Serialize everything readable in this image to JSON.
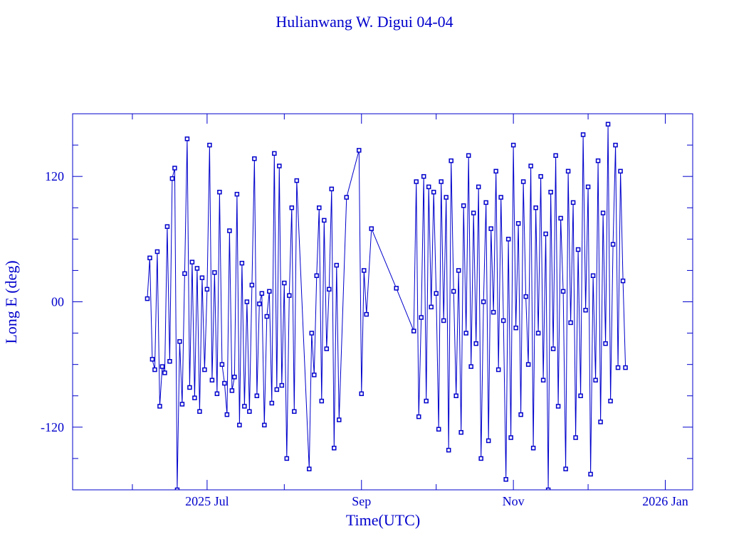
{
  "chart_data": {
    "type": "line",
    "title": "Hulianwang W. Digui 04-04",
    "xlabel": "Time(UTC)",
    "ylabel": "Long E (deg)",
    "xlim": [
      "2025-05-08",
      "2026-01-12"
    ],
    "ylim": [
      -180,
      180
    ],
    "x_ticks": [
      {
        "date": "2025-07-01",
        "label": "2025 Jul"
      },
      {
        "date": "2025-09-01",
        "label": "Sep"
      },
      {
        "date": "2025-11-01",
        "label": "Nov"
      },
      {
        "date": "2026-01-01",
        "label": "2026 Jan"
      }
    ],
    "y_ticks": [
      {
        "value": 120,
        "label": "120"
      },
      {
        "value": 0,
        "label": "00"
      },
      {
        "value": -120,
        "label": "-120"
      }
    ],
    "grid": false,
    "color": "#0000cc",
    "marker": "square",
    "points": [
      [
        "2025-06-07",
        3
      ],
      [
        "2025-06-08",
        42
      ],
      [
        "2025-06-09",
        -55
      ],
      [
        "2025-06-10",
        -65
      ],
      [
        "2025-06-11",
        48
      ],
      [
        "2025-06-12",
        -100
      ],
      [
        "2025-06-13",
        -62
      ],
      [
        "2025-06-14",
        -68
      ],
      [
        "2025-06-15",
        72
      ],
      [
        "2025-06-16",
        -57
      ],
      [
        "2025-06-17",
        118
      ],
      [
        "2025-06-18",
        128
      ],
      [
        "2025-06-19",
        -180
      ],
      [
        "2025-06-20",
        -38
      ],
      [
        "2025-06-21",
        -98
      ],
      [
        "2025-06-22",
        27
      ],
      [
        "2025-06-23",
        156
      ],
      [
        "2025-06-24",
        -82
      ],
      [
        "2025-06-25",
        38
      ],
      [
        "2025-06-26",
        -92
      ],
      [
        "2025-06-27",
        32
      ],
      [
        "2025-06-28",
        -105
      ],
      [
        "2025-06-29",
        23
      ],
      [
        "2025-06-30",
        -65
      ],
      [
        "2025-07-01",
        12
      ],
      [
        "2025-07-02",
        150
      ],
      [
        "2025-07-03",
        -75
      ],
      [
        "2025-07-04",
        28
      ],
      [
        "2025-07-05",
        -88
      ],
      [
        "2025-07-06",
        105
      ],
      [
        "2025-07-07",
        -60
      ],
      [
        "2025-07-08",
        -78
      ],
      [
        "2025-07-09",
        -108
      ],
      [
        "2025-07-10",
        68
      ],
      [
        "2025-07-11",
        -85
      ],
      [
        "2025-07-12",
        -72
      ],
      [
        "2025-07-13",
        103
      ],
      [
        "2025-07-14",
        -118
      ],
      [
        "2025-07-15",
        37
      ],
      [
        "2025-07-16",
        -100
      ],
      [
        "2025-07-17",
        0
      ],
      [
        "2025-07-18",
        -105
      ],
      [
        "2025-07-19",
        16
      ],
      [
        "2025-07-20",
        137
      ],
      [
        "2025-07-21",
        -90
      ],
      [
        "2025-07-22",
        -2
      ],
      [
        "2025-07-23",
        8
      ],
      [
        "2025-07-24",
        -118
      ],
      [
        "2025-07-25",
        -14
      ],
      [
        "2025-07-26",
        10
      ],
      [
        "2025-07-27",
        -97
      ],
      [
        "2025-07-28",
        142
      ],
      [
        "2025-07-29",
        -84
      ],
      [
        "2025-07-30",
        130
      ],
      [
        "2025-07-31",
        -80
      ],
      [
        "2025-08-01",
        18
      ],
      [
        "2025-08-02",
        -150
      ],
      [
        "2025-08-03",
        6
      ],
      [
        "2025-08-04",
        90
      ],
      [
        "2025-08-05",
        -105
      ],
      [
        "2025-08-06",
        116
      ],
      [
        "2025-08-11",
        -160
      ],
      [
        "2025-08-12",
        -30
      ],
      [
        "2025-08-13",
        -70
      ],
      [
        "2025-08-14",
        25
      ],
      [
        "2025-08-15",
        90
      ],
      [
        "2025-08-16",
        -95
      ],
      [
        "2025-08-17",
        78
      ],
      [
        "2025-08-18",
        -45
      ],
      [
        "2025-08-19",
        12
      ],
      [
        "2025-08-20",
        108
      ],
      [
        "2025-08-21",
        -140
      ],
      [
        "2025-08-22",
        35
      ],
      [
        "2025-08-23",
        -113
      ],
      [
        "2025-08-26",
        100
      ],
      [
        "2025-08-31",
        145
      ],
      [
        "2025-09-01",
        -88
      ],
      [
        "2025-09-02",
        30
      ],
      [
        "2025-09-03",
        -12
      ],
      [
        "2025-09-05",
        70
      ],
      [
        "2025-09-15",
        13
      ],
      [
        "2025-09-22",
        -28
      ],
      [
        "2025-09-23",
        115
      ],
      [
        "2025-09-24",
        -110
      ],
      [
        "2025-09-25",
        -15
      ],
      [
        "2025-09-26",
        120
      ],
      [
        "2025-09-27",
        -95
      ],
      [
        "2025-09-28",
        110
      ],
      [
        "2025-09-29",
        -5
      ],
      [
        "2025-09-30",
        105
      ],
      [
        "2025-10-01",
        8
      ],
      [
        "2025-10-02",
        -122
      ],
      [
        "2025-10-03",
        115
      ],
      [
        "2025-10-04",
        -18
      ],
      [
        "2025-10-05",
        100
      ],
      [
        "2025-10-06",
        -142
      ],
      [
        "2025-10-07",
        135
      ],
      [
        "2025-10-08",
        10
      ],
      [
        "2025-10-09",
        -90
      ],
      [
        "2025-10-10",
        30
      ],
      [
        "2025-10-11",
        -125
      ],
      [
        "2025-10-12",
        92
      ],
      [
        "2025-10-13",
        -30
      ],
      [
        "2025-10-14",
        140
      ],
      [
        "2025-10-15",
        -62
      ],
      [
        "2025-10-16",
        85
      ],
      [
        "2025-10-17",
        -40
      ],
      [
        "2025-10-18",
        110
      ],
      [
        "2025-10-19",
        -150
      ],
      [
        "2025-10-20",
        0
      ],
      [
        "2025-10-21",
        95
      ],
      [
        "2025-10-22",
        -133
      ],
      [
        "2025-10-23",
        70
      ],
      [
        "2025-10-24",
        -10
      ],
      [
        "2025-10-25",
        125
      ],
      [
        "2025-10-26",
        -65
      ],
      [
        "2025-10-27",
        100
      ],
      [
        "2025-10-28",
        -18
      ],
      [
        "2025-10-29",
        -170
      ],
      [
        "2025-10-30",
        60
      ],
      [
        "2025-10-31",
        -130
      ],
      [
        "2025-11-01",
        150
      ],
      [
        "2025-11-02",
        -25
      ],
      [
        "2025-11-03",
        75
      ],
      [
        "2025-11-04",
        -108
      ],
      [
        "2025-11-05",
        115
      ],
      [
        "2025-11-06",
        5
      ],
      [
        "2025-11-07",
        -60
      ],
      [
        "2025-11-08",
        130
      ],
      [
        "2025-11-09",
        -140
      ],
      [
        "2025-11-10",
        90
      ],
      [
        "2025-11-11",
        -30
      ],
      [
        "2025-11-12",
        120
      ],
      [
        "2025-11-13",
        -75
      ],
      [
        "2025-11-14",
        65
      ],
      [
        "2025-11-15",
        -180
      ],
      [
        "2025-11-16",
        105
      ],
      [
        "2025-11-17",
        -45
      ],
      [
        "2025-11-18",
        140
      ],
      [
        "2025-11-19",
        -100
      ],
      [
        "2025-11-20",
        80
      ],
      [
        "2025-11-21",
        10
      ],
      [
        "2025-11-22",
        -160
      ],
      [
        "2025-11-23",
        125
      ],
      [
        "2025-11-24",
        -20
      ],
      [
        "2025-11-25",
        95
      ],
      [
        "2025-11-26",
        -130
      ],
      [
        "2025-11-27",
        50
      ],
      [
        "2025-11-28",
        -90
      ],
      [
        "2025-11-29",
        160
      ],
      [
        "2025-11-30",
        -8
      ],
      [
        "2025-12-01",
        110
      ],
      [
        "2025-12-02",
        -165
      ],
      [
        "2025-12-03",
        25
      ],
      [
        "2025-12-04",
        -75
      ],
      [
        "2025-12-05",
        135
      ],
      [
        "2025-12-06",
        -115
      ],
      [
        "2025-12-07",
        85
      ],
      [
        "2025-12-08",
        -40
      ],
      [
        "2025-12-09",
        170
      ],
      [
        "2025-12-10",
        -95
      ],
      [
        "2025-12-11",
        55
      ],
      [
        "2025-12-12",
        150
      ],
      [
        "2025-12-13",
        -63
      ],
      [
        "2025-12-14",
        125
      ],
      [
        "2025-12-15",
        20
      ],
      [
        "2025-12-16",
        -63
      ]
    ]
  }
}
